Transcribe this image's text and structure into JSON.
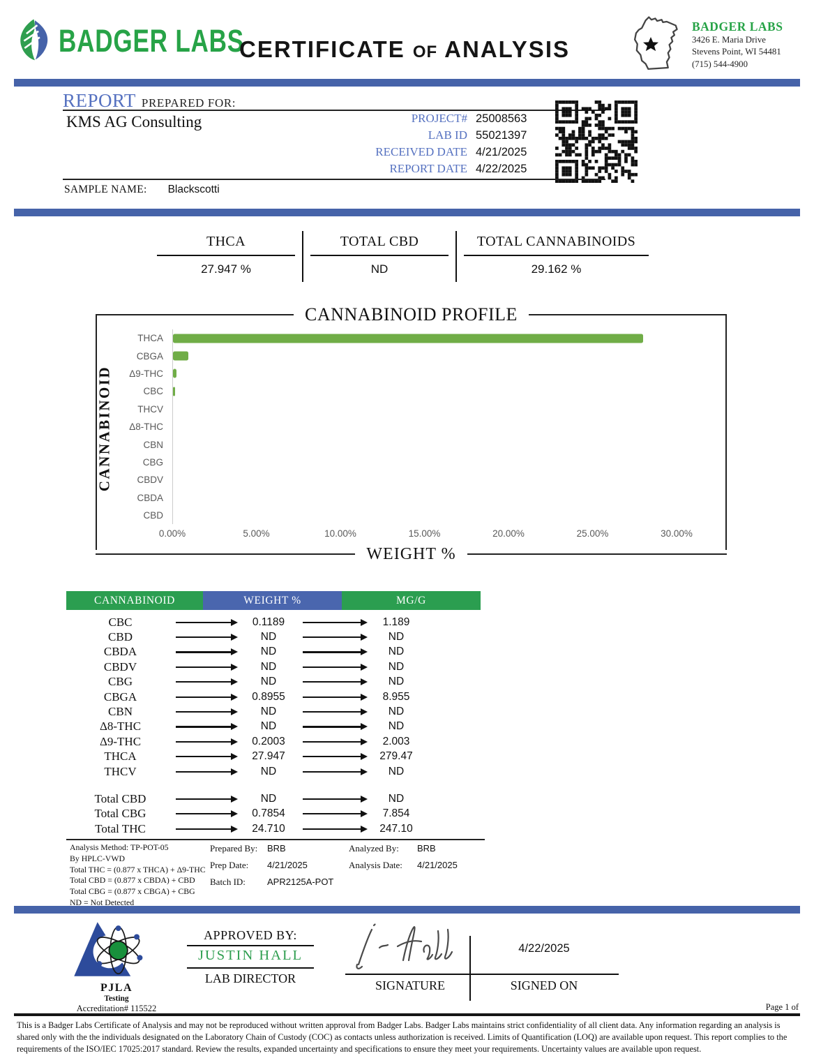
{
  "colors": {
    "accent_blue": "#4663a9",
    "brand_green": "#27a347",
    "table_green": "#2b9e50",
    "table_blue": "#4a66ae",
    "bar_green": "#70ad47",
    "field_label_blue": "#5571c0",
    "approver_green": "#2f9e50",
    "tick_gray": "#595959"
  },
  "header": {
    "brand": "BADGER LABS",
    "title_part1": "CERTIFICATE",
    "title_of": "of",
    "title_part2": "ANALYSIS",
    "lab_block": {
      "name": "BADGER LABS",
      "address1": "3426 E. Maria Drive",
      "address2": "Stevens Point, WI 54481",
      "phone": "(715) 544-4900"
    }
  },
  "report": {
    "report_word": "REPORT",
    "prepared_for": "PREPARED FOR:",
    "client": "KMS AG Consulting",
    "fields": [
      {
        "label": "PROJECT#",
        "value": "25008563"
      },
      {
        "label": "LAB ID",
        "value": "55021397"
      },
      {
        "label": "RECEIVED DATE",
        "value": "4/21/2025"
      },
      {
        "label": "REPORT DATE",
        "value": "4/22/2025"
      }
    ],
    "sample_label": "SAMPLE NAME:",
    "sample_value": "Blackscotti"
  },
  "summary": [
    {
      "label": "THCA",
      "value": "27.947 %"
    },
    {
      "label": "TOTAL CBD",
      "value": "ND"
    },
    {
      "label": "TOTAL CANNABINOIDS",
      "value": "29.162 %"
    }
  ],
  "chart_data": {
    "type": "bar",
    "orientation": "horizontal",
    "title": "CANNABINOID PROFILE",
    "xlabel": "WEIGHT %",
    "ylabel": "CANNABINOID",
    "categories": [
      "THCA",
      "CBGA",
      "Δ9-THC",
      "CBC",
      "THCV",
      "Δ8-THC",
      "CBN",
      "CBG",
      "CBDV",
      "CBDA",
      "CBD"
    ],
    "values": [
      27.947,
      0.8955,
      0.2003,
      0.1189,
      0,
      0,
      0,
      0,
      0,
      0,
      0
    ],
    "xlim": [
      0,
      30
    ],
    "xtick_labels": [
      "0.00%",
      "5.00%",
      "10.00%",
      "15.00%",
      "20.00%",
      "25.00%",
      "30.00%"
    ],
    "grid": false,
    "legend": false,
    "bar_color": "#70ad47"
  },
  "table": {
    "headers": [
      "CANNABINOID",
      "WEIGHT %",
      "MG/G"
    ],
    "rows": [
      {
        "name": "CBC",
        "weight": "0.1189",
        "mgg": "1.189"
      },
      {
        "name": "CBD",
        "weight": "ND",
        "mgg": "ND"
      },
      {
        "name": "CBDA",
        "weight": "ND",
        "mgg": "ND"
      },
      {
        "name": "CBDV",
        "weight": "ND",
        "mgg": "ND"
      },
      {
        "name": "CBG",
        "weight": "ND",
        "mgg": "ND"
      },
      {
        "name": "CBGA",
        "weight": "0.8955",
        "mgg": "8.955"
      },
      {
        "name": "CBN",
        "weight": "ND",
        "mgg": "ND"
      },
      {
        "name": "Δ8-THC",
        "weight": "ND",
        "mgg": "ND"
      },
      {
        "name": "Δ9-THC",
        "weight": "0.2003",
        "mgg": "2.003"
      },
      {
        "name": "THCA",
        "weight": "27.947",
        "mgg": "279.47"
      },
      {
        "name": "THCV",
        "weight": "ND",
        "mgg": "ND"
      }
    ],
    "totals": [
      {
        "name": "Total CBD",
        "weight": "ND",
        "mgg": "ND"
      },
      {
        "name": "Total CBG",
        "weight": "0.7854",
        "mgg": "7.854"
      },
      {
        "name": "Total THC",
        "weight": "24.710",
        "mgg": "247.10"
      }
    ]
  },
  "analysis": {
    "method_lines": [
      "Analysis Method: TP-POT-05",
      "By HPLC-VWD",
      "Total THC = (0.877 x  THCA) + Δ9-THC",
      "Total CBD = (0.877 x  CBDA) + CBD",
      "Total CBG = (0.877 x  CBGA) + CBG",
      "ND = Not Detected"
    ],
    "prepared_by_label": "Prepared By:",
    "prepared_by": "BRB",
    "prep_date_label": "Prep Date:",
    "prep_date": "4/21/2025",
    "batch_id_label": "Batch ID:",
    "batch_id": "APR2125A-POT",
    "analyzed_by_label": "Analyzed By:",
    "analyzed_by": "BRB",
    "analysis_date_label": "Analysis Date:",
    "analysis_date": "4/21/2025"
  },
  "approval": {
    "approved_by_label": "APPROVED BY:",
    "approver_name": "JUSTIN HALL",
    "approver_title": "LAB DIRECTOR",
    "signature_label": "SIGNATURE",
    "signed_on_value": "4/22/2025",
    "signed_on_label": "SIGNED ON",
    "accreditation_org": "PJLA",
    "accreditation_sub": "Testing",
    "accreditation_number": "Accreditation# 115522"
  },
  "footer": {
    "page_label": "Page 1 of",
    "disclaimer": "This is a Badger Labs Certificate of Analysis and may not be reproduced without written approval from Badger Labs. Badger Labs maintains strict confidentiality of all client data. Any information regarding an analysis is shared only with the the individuals designated on the Laboratory Chain of Custody (COC) as contacts unless authorization is received. Limits of Quantification (LOQ) are available upon request. This report complies to the requirements of the ISO/IEC 17025:2017 standard. Review the results, expanded uncertainty and specifications to ensure they meet your requirements. Uncertainty values are available upon request."
  }
}
